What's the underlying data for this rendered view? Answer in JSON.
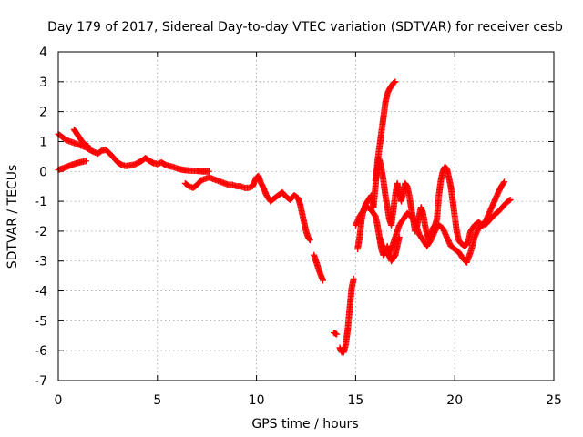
{
  "chart_data": {
    "type": "scatter",
    "title": "Day 179 of 2017, Sidereal Day-to-day VTEC variation (SDTVAR) for receiver cesb",
    "xlabel": "GPS time / hours",
    "ylabel": "SDTVAR / TECUs",
    "xlim": [
      0,
      25
    ],
    "ylim": [
      -7,
      4
    ],
    "xticks": [
      0,
      5,
      10,
      15,
      20,
      25
    ],
    "yticks": [
      -7,
      -6,
      -5,
      -4,
      -3,
      -2,
      -1,
      0,
      1,
      2,
      3,
      4
    ],
    "grid": true,
    "marker": "plus",
    "color": "#ff0000",
    "series": [
      {
        "segments": [
          [
            [
              0.0,
              0.05
            ],
            [
              0.3,
              0.12
            ],
            [
              0.6,
              0.2
            ],
            [
              0.9,
              0.27
            ],
            [
              1.2,
              0.32
            ],
            [
              1.4,
              0.35
            ]
          ],
          [
            [
              0.0,
              1.25
            ],
            [
              0.2,
              1.15
            ],
            [
              0.4,
              1.05
            ],
            [
              0.6,
              1.0
            ],
            [
              0.8,
              0.95
            ],
            [
              1.0,
              0.9
            ],
            [
              1.2,
              0.85
            ],
            [
              1.4,
              0.8
            ],
            [
              1.6,
              0.72
            ],
            [
              1.8,
              0.65
            ],
            [
              2.0,
              0.6
            ],
            [
              2.2,
              0.7
            ],
            [
              2.4,
              0.72
            ],
            [
              2.6,
              0.6
            ],
            [
              2.8,
              0.45
            ],
            [
              3.0,
              0.3
            ],
            [
              3.2,
              0.22
            ],
            [
              3.4,
              0.18
            ],
            [
              3.6,
              0.2
            ],
            [
              3.8,
              0.22
            ],
            [
              4.0,
              0.28
            ],
            [
              4.2,
              0.35
            ],
            [
              4.4,
              0.45
            ],
            [
              4.6,
              0.35
            ],
            [
              4.8,
              0.28
            ],
            [
              5.0,
              0.25
            ],
            [
              5.2,
              0.3
            ],
            [
              5.4,
              0.22
            ],
            [
              5.6,
              0.18
            ],
            [
              5.8,
              0.15
            ],
            [
              6.0,
              0.1
            ],
            [
              6.3,
              0.05
            ],
            [
              6.6,
              0.03
            ],
            [
              7.0,
              0.02
            ],
            [
              7.3,
              0.0
            ],
            [
              7.6,
              0.0
            ]
          ],
          [
            [
              0.8,
              1.4
            ],
            [
              0.9,
              1.3
            ],
            [
              1.0,
              1.2
            ],
            [
              1.1,
              1.1
            ],
            [
              1.2,
              1.0
            ],
            [
              1.35,
              0.9
            ],
            [
              1.5,
              0.85
            ]
          ],
          [
            [
              6.4,
              -0.4
            ],
            [
              6.6,
              -0.5
            ],
            [
              6.8,
              -0.55
            ],
            [
              7.0,
              -0.45
            ],
            [
              7.2,
              -0.3
            ],
            [
              7.4,
              -0.25
            ],
            [
              7.6,
              -0.2
            ],
            [
              7.8,
              -0.25
            ],
            [
              8.0,
              -0.3
            ],
            [
              8.2,
              -0.35
            ],
            [
              8.4,
              -0.4
            ],
            [
              8.6,
              -0.45
            ],
            [
              8.8,
              -0.45
            ],
            [
              9.0,
              -0.5
            ],
            [
              9.2,
              -0.5
            ],
            [
              9.4,
              -0.55
            ],
            [
              9.6,
              -0.55
            ],
            [
              9.8,
              -0.5
            ],
            [
              9.9,
              -0.35
            ],
            [
              10.0,
              -0.2
            ],
            [
              10.1,
              -0.15
            ],
            [
              10.2,
              -0.35
            ],
            [
              10.35,
              -0.55
            ],
            [
              10.5,
              -0.8
            ],
            [
              10.7,
              -1.0
            ],
            [
              10.9,
              -0.9
            ],
            [
              11.1,
              -0.8
            ],
            [
              11.3,
              -0.7
            ],
            [
              11.5,
              -0.85
            ],
            [
              11.7,
              -0.95
            ],
            [
              11.9,
              -0.8
            ],
            [
              12.1,
              -0.9
            ],
            [
              12.2,
              -1.1
            ],
            [
              12.3,
              -1.4
            ],
            [
              12.4,
              -1.7
            ],
            [
              12.5,
              -2.0
            ],
            [
              12.6,
              -2.2
            ],
            [
              12.7,
              -2.3
            ]
          ],
          [
            [
              12.9,
              -2.8
            ],
            [
              13.05,
              -3.1
            ],
            [
              13.2,
              -3.4
            ],
            [
              13.35,
              -3.65
            ]
          ],
          [
            [
              13.9,
              -5.4
            ],
            [
              14.05,
              -5.45
            ]
          ],
          [
            [
              14.2,
              -5.9
            ],
            [
              14.3,
              -6.05
            ],
            [
              14.4,
              -6.05
            ],
            [
              14.5,
              -5.8
            ],
            [
              14.6,
              -5.3
            ],
            [
              14.7,
              -4.6
            ],
            [
              14.8,
              -3.9
            ],
            [
              14.9,
              -3.6
            ]
          ],
          [
            [
              15.1,
              -2.6
            ],
            [
              15.2,
              -2.2
            ],
            [
              15.3,
              -1.6
            ],
            [
              15.4,
              -1.3
            ],
            [
              15.5,
              -1.1
            ],
            [
              15.6,
              -1.0
            ],
            [
              15.7,
              -0.9
            ],
            [
              15.8,
              -0.8
            ],
            [
              15.9,
              -1.2
            ],
            [
              16.0,
              -0.5
            ],
            [
              16.1,
              0.3
            ],
            [
              16.2,
              0.8
            ],
            [
              16.3,
              1.3
            ],
            [
              16.4,
              1.8
            ],
            [
              16.5,
              2.3
            ],
            [
              16.6,
              2.6
            ],
            [
              16.7,
              2.75
            ],
            [
              16.8,
              2.85
            ],
            [
              16.9,
              2.95
            ],
            [
              17.0,
              3.0
            ]
          ],
          [
            [
              15.0,
              -1.8
            ],
            [
              15.2,
              -1.5
            ],
            [
              15.4,
              -1.3
            ],
            [
              15.6,
              -1.2
            ],
            [
              15.8,
              -1.3
            ],
            [
              16.0,
              -1.5
            ],
            [
              16.1,
              -1.8
            ],
            [
              16.2,
              -2.2
            ],
            [
              16.3,
              -2.6
            ],
            [
              16.4,
              -2.8
            ],
            [
              16.5,
              -2.7
            ],
            [
              16.6,
              -2.5
            ],
            [
              16.7,
              -2.8
            ],
            [
              16.8,
              -3.0
            ],
            [
              16.9,
              -2.9
            ],
            [
              17.0,
              -2.8
            ],
            [
              17.1,
              -2.5
            ],
            [
              17.2,
              -2.2
            ]
          ],
          [
            [
              16.0,
              -0.3
            ],
            [
              16.1,
              0.1
            ],
            [
              16.2,
              0.4
            ],
            [
              16.3,
              0.1
            ],
            [
              16.4,
              -0.3
            ],
            [
              16.5,
              -0.8
            ],
            [
              16.6,
              -1.2
            ],
            [
              16.7,
              -1.6
            ],
            [
              16.8,
              -1.8
            ],
            [
              16.9,
              -1.3
            ],
            [
              17.0,
              -0.8
            ],
            [
              17.1,
              -0.4
            ],
            [
              17.2,
              -0.7
            ],
            [
              17.3,
              -1.0
            ],
            [
              17.4,
              -0.7
            ],
            [
              17.5,
              -0.4
            ],
            [
              17.6,
              -0.5
            ],
            [
              17.7,
              -0.8
            ],
            [
              17.8,
              -1.2
            ],
            [
              17.9,
              -1.6
            ],
            [
              18.0,
              -2.0
            ],
            [
              18.1,
              -1.8
            ],
            [
              18.2,
              -1.5
            ],
            [
              18.3,
              -1.2
            ],
            [
              18.4,
              -1.4
            ],
            [
              18.5,
              -1.8
            ],
            [
              18.6,
              -2.1
            ],
            [
              18.7,
              -2.3
            ],
            [
              18.8,
              -2.1
            ],
            [
              18.9,
              -1.9
            ],
            [
              19.0,
              -1.8
            ],
            [
              19.1,
              -1.6
            ],
            [
              19.2,
              -0.8
            ],
            [
              19.3,
              -0.3
            ],
            [
              19.4,
              0.0
            ],
            [
              19.5,
              0.15
            ],
            [
              19.6,
              0.1
            ],
            [
              19.7,
              -0.2
            ],
            [
              19.8,
              -0.5
            ],
            [
              19.9,
              -1.0
            ],
            [
              20.0,
              -1.5
            ],
            [
              20.1,
              -2.0
            ],
            [
              20.2,
              -2.3
            ],
            [
              20.3,
              -2.4
            ],
            [
              20.4,
              -2.45
            ],
            [
              20.5,
              -2.5
            ],
            [
              20.6,
              -2.45
            ],
            [
              20.7,
              -2.3
            ],
            [
              20.8,
              -2.0
            ],
            [
              21.0,
              -1.8
            ],
            [
              21.2,
              -1.7
            ],
            [
              21.4,
              -1.8
            ],
            [
              21.6,
              -1.6
            ],
            [
              21.8,
              -1.3
            ],
            [
              22.0,
              -1.0
            ],
            [
              22.2,
              -0.7
            ],
            [
              22.35,
              -0.5
            ],
            [
              22.5,
              -0.35
            ]
          ],
          [
            [
              16.2,
              -2.2
            ],
            [
              16.4,
              -2.6
            ],
            [
              16.6,
              -2.8
            ],
            [
              16.8,
              -2.6
            ],
            [
              17.0,
              -2.2
            ],
            [
              17.2,
              -1.8
            ],
            [
              17.4,
              -1.6
            ],
            [
              17.6,
              -1.4
            ],
            [
              17.8,
              -1.5
            ],
            [
              18.0,
              -1.7
            ],
            [
              18.2,
              -2.1
            ],
            [
              18.4,
              -2.3
            ],
            [
              18.6,
              -2.5
            ],
            [
              18.8,
              -2.3
            ],
            [
              19.0,
              -2.0
            ],
            [
              19.2,
              -1.8
            ],
            [
              19.4,
              -1.9
            ],
            [
              19.6,
              -2.2
            ],
            [
              19.8,
              -2.5
            ],
            [
              20.0,
              -2.6
            ],
            [
              20.2,
              -2.7
            ],
            [
              20.4,
              -2.9
            ],
            [
              20.6,
              -3.05
            ],
            [
              20.8,
              -2.7
            ],
            [
              21.0,
              -2.2
            ],
            [
              21.2,
              -1.9
            ],
            [
              21.4,
              -1.8
            ],
            [
              21.6,
              -1.75
            ],
            [
              21.8,
              -1.6
            ],
            [
              22.0,
              -1.45
            ],
            [
              22.2,
              -1.35
            ],
            [
              22.4,
              -1.2
            ],
            [
              22.6,
              -1.05
            ],
            [
              22.8,
              -0.95
            ]
          ]
        ]
      }
    ]
  }
}
